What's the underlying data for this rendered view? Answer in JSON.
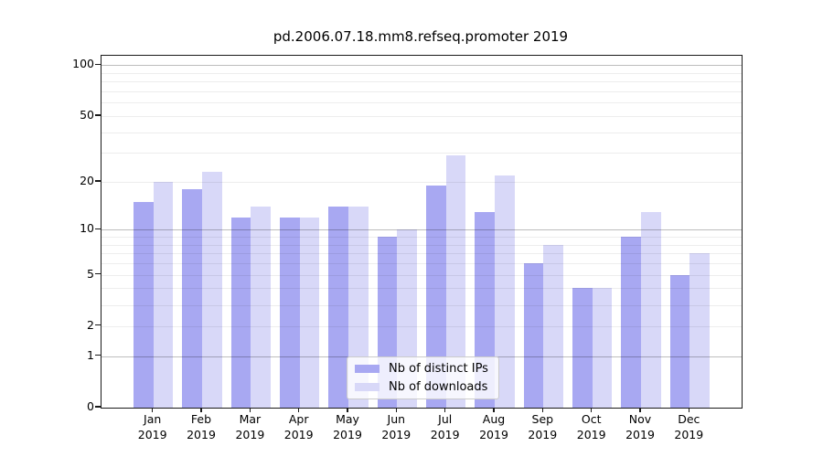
{
  "chart_data": {
    "type": "bar",
    "title": "pd.2006.07.18.mm8.refseq.promoter 2019",
    "xlabel": "",
    "ylabel": "",
    "yscale": "log10(1+y)",
    "ylim": [
      0,
      115
    ],
    "yticks": [
      100,
      50,
      20,
      10,
      5,
      2,
      1,
      0
    ],
    "grid": true,
    "grid_major": [
      1,
      10,
      100
    ],
    "grid_minor": [
      2,
      3,
      4,
      5,
      6,
      7,
      8,
      9,
      20,
      30,
      40,
      50,
      60,
      70,
      80,
      90
    ],
    "legend_position": "bottom-center",
    "categories": [
      "Jan 2019",
      "Feb 2019",
      "Mar 2019",
      "Apr 2019",
      "May 2019",
      "Jun 2019",
      "Jul 2019",
      "Aug 2019",
      "Sep 2019",
      "Oct 2019",
      "Nov 2019",
      "Dec 2019"
    ],
    "series": [
      {
        "name": "Nb of distinct IPs",
        "color": "#a8a8f2",
        "values": [
          15,
          18,
          12,
          12,
          14,
          9,
          19,
          13,
          6,
          4,
          9,
          5
        ]
      },
      {
        "name": "Nb of downloads",
        "color": "#d8d8f8",
        "values": [
          20,
          23,
          14,
          12,
          14,
          10,
          29,
          22,
          8,
          4,
          13,
          7
        ]
      }
    ]
  }
}
